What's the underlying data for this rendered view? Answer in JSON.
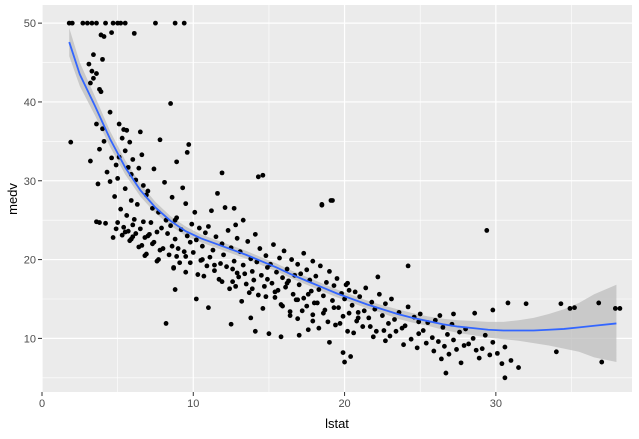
{
  "chart_data": {
    "type": "scatter",
    "title": "",
    "xlabel": "lstat",
    "ylabel": "medv",
    "xlim": [
      0,
      39
    ],
    "ylim": [
      3.2,
      52.3
    ],
    "x_ticks": [
      0,
      10,
      20,
      30
    ],
    "y_ticks": [
      10,
      20,
      30,
      40,
      50
    ],
    "x_tick_labels": [
      "0",
      "10",
      "20",
      "30"
    ],
    "y_tick_labels": [
      "10",
      "20",
      "30",
      "40",
      "50"
    ],
    "grid": true,
    "legend": "none",
    "colors": {
      "panel": "#ebebeb",
      "grid": "#ffffff",
      "points": "#000000",
      "smooth_line": "#3366ff",
      "ribbon": "#bdbdbd"
    },
    "points": [
      [
        1.8,
        50
      ],
      [
        2.0,
        50
      ],
      [
        3.0,
        50
      ],
      [
        3.3,
        50
      ],
      [
        3.6,
        50
      ],
      [
        4.2,
        50
      ],
      [
        5.0,
        50
      ],
      [
        5.2,
        50
      ],
      [
        5.5,
        50
      ],
      [
        7.5,
        50
      ],
      [
        9.4,
        50
      ],
      [
        8.8,
        50
      ],
      [
        4.7,
        50
      ],
      [
        2.7,
        50
      ],
      [
        4.6,
        48.8
      ],
      [
        6.1,
        48.7
      ],
      [
        3.9,
        48.5
      ],
      [
        4.1,
        48.3
      ],
      [
        3.4,
        46.0
      ],
      [
        4.0,
        45.4
      ],
      [
        3.1,
        44.8
      ],
      [
        3.3,
        43.9
      ],
      [
        3.6,
        43.6
      ],
      [
        3.4,
        43.0
      ],
      [
        3.2,
        42.4
      ],
      [
        3.8,
        41.6
      ],
      [
        3.9,
        41.3
      ],
      [
        8.5,
        39.8
      ],
      [
        4.5,
        38.7
      ],
      [
        5.1,
        37.2
      ],
      [
        3.6,
        37.2
      ],
      [
        4.0,
        36.6
      ],
      [
        5.4,
        36.5
      ],
      [
        5.6,
        36.4
      ],
      [
        6.5,
        36.2
      ],
      [
        5.3,
        35.4
      ],
      [
        7.8,
        35.2
      ],
      [
        4.1,
        35.0
      ],
      [
        1.9,
        34.9
      ],
      [
        5.8,
        34.9
      ],
      [
        9.7,
        34.6
      ],
      [
        3.8,
        34.0
      ],
      [
        5.5,
        33.8
      ],
      [
        9.6,
        33.6
      ],
      [
        6.6,
        33.3
      ],
      [
        5.1,
        33.0
      ],
      [
        4.6,
        32.9
      ],
      [
        6.0,
        32.7
      ],
      [
        3.2,
        32.5
      ],
      [
        8.9,
        32.4
      ],
      [
        4.9,
        32.0
      ],
      [
        5.7,
        31.7
      ],
      [
        6.4,
        31.6
      ],
      [
        7.4,
        31.5
      ],
      [
        4.3,
        31.1
      ],
      [
        5.9,
        30.8
      ],
      [
        14.6,
        30.7
      ],
      [
        5.0,
        30.3
      ],
      [
        6.2,
        30.1
      ],
      [
        4.5,
        29.9
      ],
      [
        8.1,
        29.8
      ],
      [
        3.7,
        29.6
      ],
      [
        6.7,
        29.4
      ],
      [
        9.3,
        29.1
      ],
      [
        5.5,
        29.0
      ],
      [
        7.0,
        28.7
      ],
      [
        11.6,
        28.4
      ],
      [
        6.9,
        28.2
      ],
      [
        4.8,
        28.0
      ],
      [
        8.6,
        27.9
      ],
      [
        5.9,
        27.5
      ],
      [
        19.1,
        27.5
      ],
      [
        9.5,
        27.1
      ],
      [
        6.3,
        27.0
      ],
      [
        18.5,
        26.9
      ],
      [
        12.1,
        26.6
      ],
      [
        7.3,
        26.5
      ],
      [
        5.2,
        26.4
      ],
      [
        11.2,
        26.2
      ],
      [
        7.7,
        26.0
      ],
      [
        5.6,
        25.6
      ],
      [
        8.9,
        25.3
      ],
      [
        6.1,
        25.1
      ],
      [
        13.3,
        25.0
      ],
      [
        8.2,
        25.0
      ],
      [
        3.6,
        24.8
      ],
      [
        6.7,
        24.8
      ],
      [
        5.0,
        24.7
      ],
      [
        7.2,
        24.7
      ],
      [
        9.9,
        24.5
      ],
      [
        12.8,
        24.4
      ],
      [
        6.0,
        24.4
      ],
      [
        8.5,
        24.3
      ],
      [
        11.0,
        24.2
      ],
      [
        5.4,
        24.1
      ],
      [
        7.9,
        24.0
      ],
      [
        10.4,
        24.0
      ],
      [
        4.9,
        23.9
      ],
      [
        6.5,
        23.9
      ],
      [
        9.2,
        23.8
      ],
      [
        12.3,
        23.7
      ],
      [
        5.7,
        23.6
      ],
      [
        7.6,
        23.5
      ],
      [
        10.8,
        23.4
      ],
      [
        6.2,
        23.3
      ],
      [
        8.3,
        23.3
      ],
      [
        14.1,
        23.2
      ],
      [
        5.3,
        23.1
      ],
      [
        9.6,
        23.0
      ],
      [
        7.0,
        23.0
      ],
      [
        11.5,
        22.9
      ],
      [
        6.8,
        22.8
      ],
      [
        12.9,
        22.7
      ],
      [
        8.8,
        22.6
      ],
      [
        10.2,
        22.5
      ],
      [
        5.8,
        22.4
      ],
      [
        13.6,
        22.3
      ],
      [
        7.4,
        22.2
      ],
      [
        9.8,
        22.2
      ],
      [
        11.9,
        22.0
      ],
      [
        15.3,
        21.9
      ],
      [
        6.6,
        21.8
      ],
      [
        8.6,
        21.7
      ],
      [
        10.6,
        21.7
      ],
      [
        12.5,
        21.5
      ],
      [
        14.4,
        21.4
      ],
      [
        9.0,
        21.4
      ],
      [
        7.8,
        21.2
      ],
      [
        11.3,
        21.2
      ],
      [
        16.0,
        21.1
      ],
      [
        13.1,
        21.0
      ],
      [
        10.0,
        20.9
      ],
      [
        17.3,
        20.8
      ],
      [
        6.9,
        20.7
      ],
      [
        8.4,
        20.6
      ],
      [
        12.0,
        20.6
      ],
      [
        14.8,
        20.5
      ],
      [
        9.5,
        20.4
      ],
      [
        11.1,
        20.3
      ],
      [
        15.7,
        20.2
      ],
      [
        13.8,
        20.1
      ],
      [
        16.5,
        20.0
      ],
      [
        7.7,
        20.0
      ],
      [
        10.5,
        19.9
      ],
      [
        12.7,
        19.8
      ],
      [
        17.9,
        19.8
      ],
      [
        14.2,
        19.7
      ],
      [
        9.1,
        19.6
      ],
      [
        11.8,
        19.5
      ],
      [
        15.1,
        19.4
      ],
      [
        16.9,
        19.4
      ],
      [
        13.3,
        19.3
      ],
      [
        10.9,
        19.2
      ],
      [
        18.4,
        19.2
      ],
      [
        12.2,
        19.1
      ],
      [
        14.9,
        19.0
      ],
      [
        8.7,
        18.9
      ],
      [
        16.2,
        18.8
      ],
      [
        17.5,
        18.7
      ],
      [
        11.4,
        18.6
      ],
      [
        13.9,
        18.5
      ],
      [
        19.0,
        18.5
      ],
      [
        15.5,
        18.4
      ],
      [
        12.9,
        18.3
      ],
      [
        17.1,
        18.2
      ],
      [
        10.3,
        18.1
      ],
      [
        14.5,
        18.0
      ],
      [
        16.7,
        18.0
      ],
      [
        18.1,
        17.9
      ],
      [
        13.0,
        17.8
      ],
      [
        15.9,
        17.7
      ],
      [
        19.5,
        17.6
      ],
      [
        11.7,
        17.5
      ],
      [
        17.7,
        17.4
      ],
      [
        14.0,
        17.4
      ],
      [
        16.3,
        17.3
      ],
      [
        12.6,
        17.2
      ],
      [
        18.8,
        17.1
      ],
      [
        15.2,
        17.0
      ],
      [
        20.2,
        17.0
      ],
      [
        13.5,
        16.9
      ],
      [
        17.0,
        16.8
      ],
      [
        19.3,
        16.7
      ],
      [
        14.7,
        16.6
      ],
      [
        16.1,
        16.5
      ],
      [
        21.4,
        16.4
      ],
      [
        12.4,
        16.3
      ],
      [
        18.3,
        16.2
      ],
      [
        15.6,
        16.1
      ],
      [
        17.8,
        16.0
      ],
      [
        20.7,
        15.9
      ],
      [
        13.7,
        15.8
      ],
      [
        19.8,
        15.7
      ],
      [
        16.6,
        15.6
      ],
      [
        22.3,
        15.6
      ],
      [
        14.3,
        15.5
      ],
      [
        18.6,
        15.4
      ],
      [
        21.0,
        15.3
      ],
      [
        15.4,
        15.2
      ],
      [
        17.3,
        15.1
      ],
      [
        20.0,
        15.0
      ],
      [
        23.1,
        15.0
      ],
      [
        16.8,
        14.9
      ],
      [
        19.2,
        14.8
      ],
      [
        13.2,
        14.7
      ],
      [
        21.8,
        14.6
      ],
      [
        18.0,
        14.5
      ],
      [
        22.7,
        14.4
      ],
      [
        15.8,
        14.3
      ],
      [
        20.5,
        14.2
      ],
      [
        17.5,
        14.1
      ],
      [
        24.2,
        14.0
      ],
      [
        19.6,
        13.9
      ],
      [
        14.6,
        13.8
      ],
      [
        22.0,
        13.7
      ],
      [
        18.7,
        13.6
      ],
      [
        21.3,
        13.5
      ],
      [
        16.4,
        13.4
      ],
      [
        23.6,
        13.3
      ],
      [
        20.3,
        13.2
      ],
      [
        25.0,
        13.1
      ],
      [
        17.9,
        13.0
      ],
      [
        22.5,
        12.9
      ],
      [
        19.9,
        12.8
      ],
      [
        24.6,
        12.7
      ],
      [
        21.6,
        12.6
      ],
      [
        16.9,
        12.5
      ],
      [
        23.3,
        12.4
      ],
      [
        26.0,
        12.3
      ],
      [
        20.8,
        12.2
      ],
      [
        18.9,
        12.1
      ],
      [
        25.5,
        12.0
      ],
      [
        22.9,
        11.9
      ],
      [
        27.1,
        11.8
      ],
      [
        19.4,
        11.7
      ],
      [
        24.0,
        11.6
      ],
      [
        21.2,
        11.5
      ],
      [
        26.5,
        11.4
      ],
      [
        23.8,
        11.3
      ],
      [
        28.0,
        11.2
      ],
      [
        17.6,
        11.1
      ],
      [
        25.2,
        11.0
      ],
      [
        22.1,
        10.9
      ],
      [
        27.6,
        10.8
      ],
      [
        20.6,
        10.7
      ],
      [
        24.9,
        10.6
      ],
      [
        26.8,
        10.5
      ],
      [
        29.3,
        10.4
      ],
      [
        23.0,
        10.3
      ],
      [
        21.9,
        10.2
      ],
      [
        25.8,
        10.1
      ],
      [
        28.5,
        10.0
      ],
      [
        24.4,
        9.9
      ],
      [
        27.2,
        9.8
      ],
      [
        22.7,
        9.7
      ],
      [
        26.2,
        9.6
      ],
      [
        29.8,
        9.5
      ],
      [
        25.4,
        9.4
      ],
      [
        28.2,
        9.3
      ],
      [
        23.9,
        9.2
      ],
      [
        27.9,
        9.1
      ],
      [
        26.6,
        9.0
      ],
      [
        30.6,
        8.9
      ],
      [
        24.8,
        8.8
      ],
      [
        29.1,
        8.7
      ],
      [
        27.4,
        8.6
      ],
      [
        28.7,
        8.5
      ],
      [
        25.9,
        8.4
      ],
      [
        34.0,
        8.3
      ],
      [
        19.9,
        8.2
      ],
      [
        30.1,
        8.1
      ],
      [
        26.9,
        8.0
      ],
      [
        29.6,
        7.9
      ],
      [
        20.4,
        7.7
      ],
      [
        28.9,
        7.5
      ],
      [
        26.4,
        7.4
      ],
      [
        31.0,
        7.2
      ],
      [
        20.0,
        7.0
      ],
      [
        27.7,
        6.9
      ],
      [
        30.4,
        6.8
      ],
      [
        37.0,
        7.0
      ],
      [
        26.7,
        5.6
      ],
      [
        30.6,
        5.0
      ],
      [
        31.5,
        6.3
      ],
      [
        34.3,
        14.4
      ],
      [
        34.9,
        13.8
      ],
      [
        37.9,
        13.8
      ],
      [
        30.8,
        14.5
      ],
      [
        29.8,
        13.6
      ],
      [
        29.4,
        23.7
      ],
      [
        35.2,
        13.9
      ],
      [
        24.2,
        19.2
      ],
      [
        22.2,
        17.8
      ],
      [
        20.1,
        16.8
      ],
      [
        20.3,
        16.1
      ],
      [
        18.5,
        27.0
      ],
      [
        19.2,
        27.5
      ],
      [
        14.3,
        30.5
      ],
      [
        11.9,
        31.0
      ],
      [
        12.7,
        26.5
      ],
      [
        10.1,
        26.0
      ],
      [
        8.8,
        25.0
      ],
      [
        4.2,
        24.6
      ],
      [
        3.8,
        24.7
      ],
      [
        5.5,
        23.5
      ],
      [
        7.1,
        23.2
      ],
      [
        6.0,
        22.9
      ],
      [
        4.7,
        22.8
      ],
      [
        5.9,
        22.6
      ],
      [
        7.3,
        22.0
      ],
      [
        6.4,
        21.6
      ],
      [
        8.0,
        21.4
      ],
      [
        9.4,
        21.0
      ],
      [
        6.8,
        20.5
      ],
      [
        8.9,
        20.4
      ],
      [
        10.6,
        20.0
      ],
      [
        7.6,
        19.8
      ],
      [
        9.8,
        19.6
      ],
      [
        11.4,
        19.3
      ],
      [
        8.7,
        19.0
      ],
      [
        12.6,
        18.8
      ],
      [
        9.5,
        18.4
      ],
      [
        13.4,
        18.2
      ],
      [
        10.7,
        17.9
      ],
      [
        14.9,
        17.5
      ],
      [
        11.9,
        17.2
      ],
      [
        16.2,
        17.0
      ],
      [
        12.8,
        16.6
      ],
      [
        13.9,
        16.3
      ],
      [
        15.4,
        15.9
      ],
      [
        17.6,
        15.6
      ],
      [
        14.8,
        15.3
      ],
      [
        16.9,
        14.9
      ],
      [
        18.2,
        14.5
      ],
      [
        15.9,
        14.1
      ],
      [
        19.3,
        13.9
      ],
      [
        17.2,
        13.5
      ],
      [
        18.6,
        13.2
      ],
      [
        16.4,
        12.9
      ],
      [
        20.9,
        12.6
      ],
      [
        17.9,
        12.2
      ],
      [
        19.7,
        11.9
      ],
      [
        21.7,
        11.5
      ],
      [
        18.3,
        11.3
      ],
      [
        20.2,
        10.9
      ],
      [
        15.0,
        10.6
      ],
      [
        14.1,
        10.9
      ],
      [
        12.5,
        11.8
      ],
      [
        13.8,
        12.6
      ],
      [
        11.0,
        13.9
      ],
      [
        10.2,
        15.0
      ],
      [
        8.8,
        16.2
      ],
      [
        8.2,
        11.9
      ],
      [
        15.8,
        10.2
      ],
      [
        17.0,
        10.4
      ],
      [
        19.0,
        9.5
      ],
      [
        22.6,
        11.0
      ],
      [
        23.4,
        10.9
      ],
      [
        24.9,
        12.1
      ],
      [
        26.3,
        12.9
      ],
      [
        27.2,
        13.1
      ],
      [
        28.6,
        13.2
      ],
      [
        20.9,
        13.3
      ],
      [
        32.0,
        14.4
      ],
      [
        36.8,
        14.5
      ],
      [
        38.2,
        13.8
      ]
    ],
    "smooth_line": {
      "x": [
        1.8,
        2.5,
        3.5,
        4.5,
        5.5,
        6.5,
        7.5,
        8.5,
        9.5,
        10.5,
        11.5,
        12.5,
        13.5,
        14.5,
        15.5,
        16.5,
        17.5,
        18.5,
        19.5,
        20.5,
        21.5,
        22.5,
        23.5,
        24.5,
        25.5,
        26.5,
        27.5,
        28.5,
        29.5,
        30.5,
        31.5,
        32.5,
        33.5,
        34.5,
        35.5,
        36.5,
        37.97
      ],
      "y": [
        47.6,
        43.5,
        39.5,
        35.3,
        31.7,
        28.8,
        26.6,
        24.9,
        23.6,
        22.7,
        22.0,
        21.3,
        20.6,
        19.8,
        19.0,
        18.1,
        17.3,
        16.5,
        15.7,
        15.0,
        14.3,
        13.7,
        13.1,
        12.6,
        12.2,
        11.8,
        11.5,
        11.3,
        11.1,
        11.0,
        11.0,
        11.0,
        11.1,
        11.2,
        11.4,
        11.6,
        11.9
      ]
    },
    "ribbon_half_width": [
      1.8,
      1.5,
      1.2,
      1.0,
      0.9,
      0.8,
      0.7,
      0.6,
      0.6,
      0.5,
      0.5,
      0.5,
      0.5,
      0.5,
      0.5,
      0.5,
      0.5,
      0.5,
      0.5,
      0.5,
      0.5,
      0.5,
      0.6,
      0.6,
      0.6,
      0.7,
      0.8,
      0.9,
      1.0,
      1.1,
      1.3,
      1.6,
      2.0,
      2.5,
      3.1,
      4.0,
      4.9
    ]
  }
}
